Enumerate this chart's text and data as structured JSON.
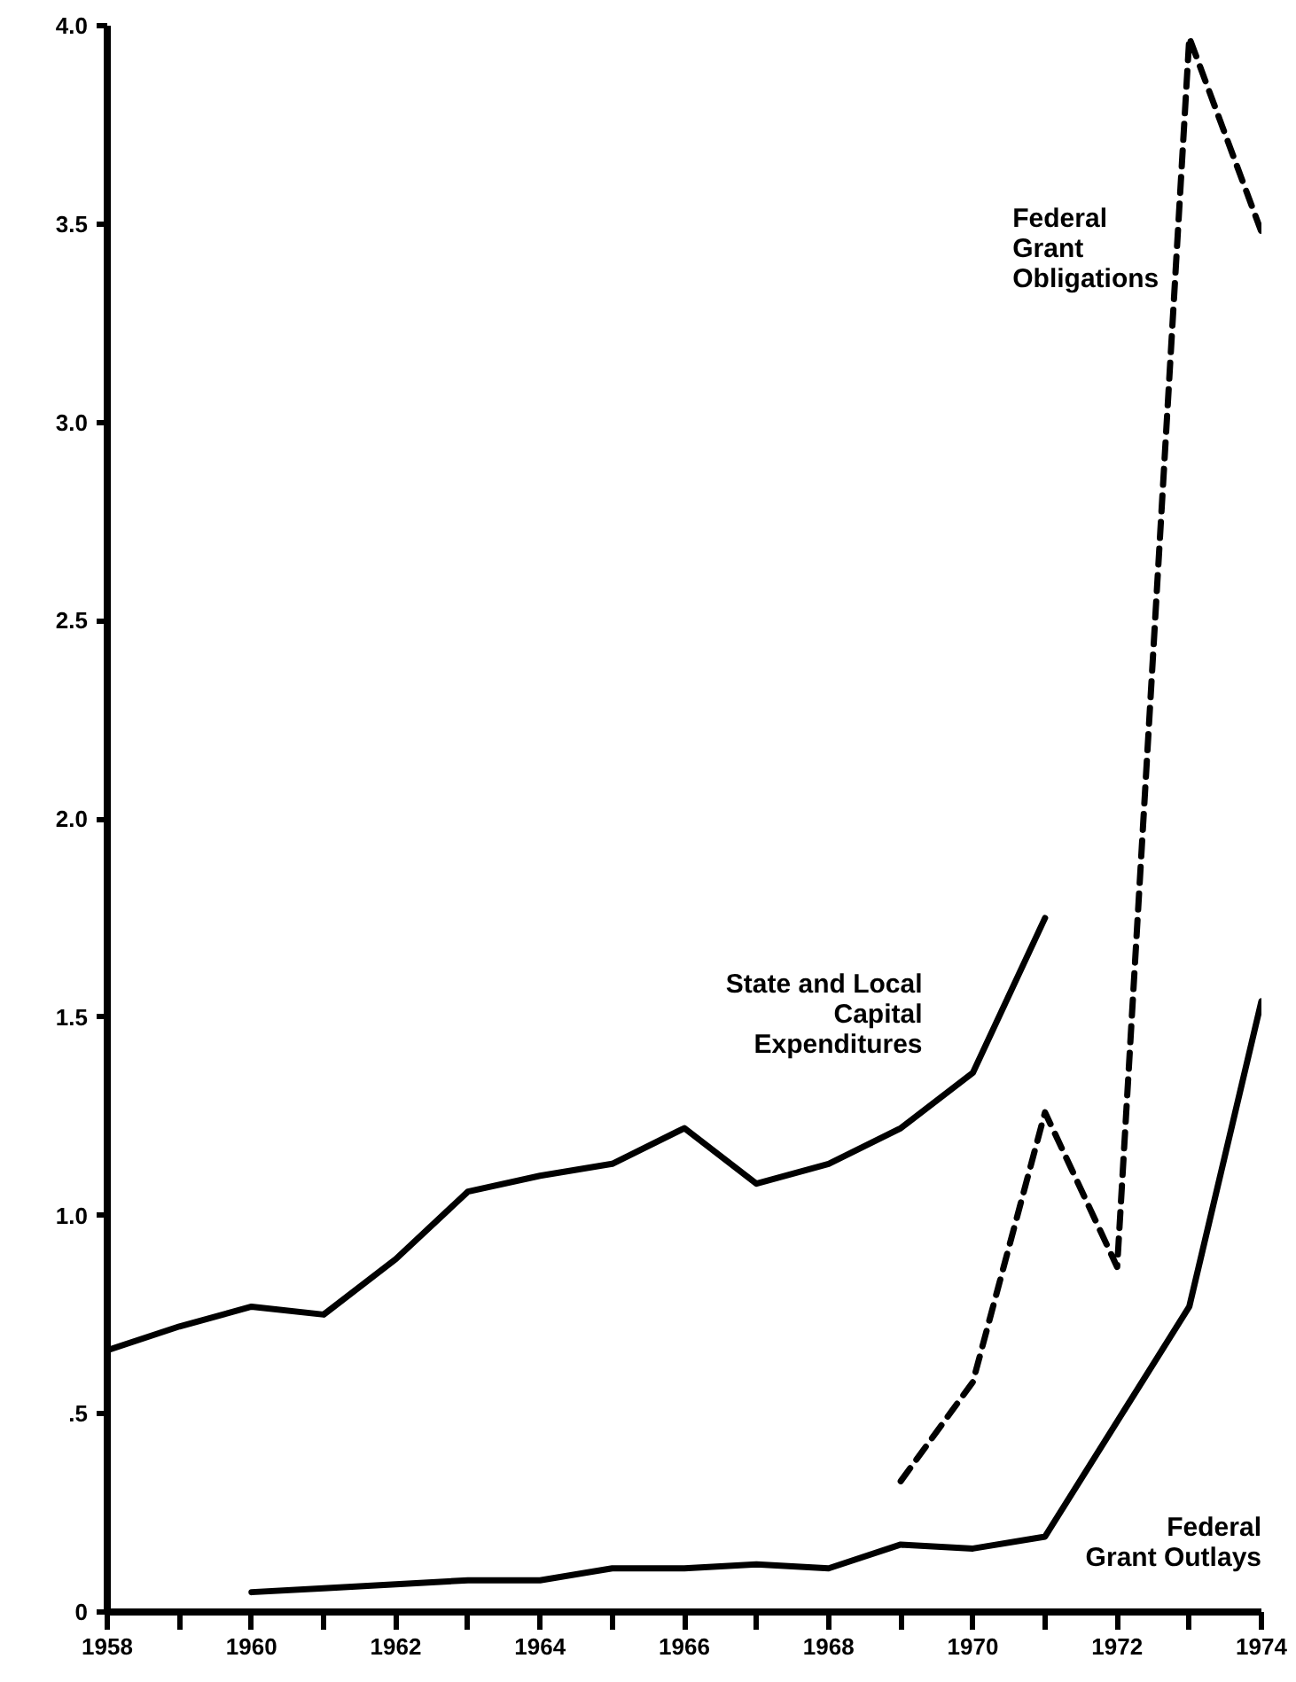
{
  "chart_data": {
    "type": "line",
    "xlim": [
      1958,
      1974
    ],
    "ylim": [
      0,
      4.0
    ],
    "xticks": [
      1958,
      {
        "value": 1959,
        "label": null
      },
      1960,
      {
        "value": 1961,
        "label": null
      },
      1962,
      {
        "value": 1963,
        "label": null
      },
      1964,
      {
        "value": 1965,
        "label": null
      },
      1966,
      {
        "value": 1967,
        "label": null
      },
      1968,
      {
        "value": 1969,
        "label": null
      },
      1970,
      {
        "value": 1971,
        "label": null
      },
      1972,
      {
        "value": 1973,
        "label": null
      },
      1974
    ],
    "yticks": [
      0,
      {
        "value": 0.5,
        "label": ".5"
      },
      {
        "value": 1.0,
        "label": "1.0"
      },
      1.5,
      {
        "value": 2.0,
        "label": "2.0"
      },
      2.5,
      {
        "value": 3.0,
        "label": "3.0"
      },
      3.5,
      {
        "value": 4.0,
        "label": "4.0"
      }
    ],
    "grid": false,
    "series": [
      {
        "name": "State and Local\nCapital\nExpenditures",
        "color": "#000000",
        "line_style": "solid",
        "x": [
          1958,
          1959,
          1960,
          1961,
          1962,
          1963,
          1964,
          1965,
          1966,
          1967,
          1968,
          1969,
          1970,
          1971
        ],
        "values": [
          0.66,
          0.72,
          0.77,
          0.75,
          0.89,
          1.06,
          1.1,
          1.13,
          1.22,
          1.08,
          1.13,
          1.22,
          1.36,
          1.75
        ]
      },
      {
        "name": "Federal\nGrant\nObligations",
        "color": "#000000",
        "line_style": "dashed",
        "x": [
          1969,
          1970,
          1971,
          1972,
          1973,
          1974
        ],
        "values": [
          0.33,
          0.58,
          1.26,
          0.87,
          3.97,
          3.48
        ]
      },
      {
        "name": "Federal\nGrant Outlays",
        "color": "#000000",
        "line_style": "solid",
        "x": [
          1960,
          1961,
          1962,
          1963,
          1964,
          1965,
          1966,
          1967,
          1968,
          1969,
          1970,
          1971,
          1972,
          1973,
          1974
        ],
        "values": [
          0.05,
          0.06,
          0.07,
          0.08,
          0.08,
          0.11,
          0.11,
          0.12,
          0.11,
          0.17,
          0.16,
          0.19,
          0.48,
          0.77,
          1.54
        ]
      }
    ]
  }
}
